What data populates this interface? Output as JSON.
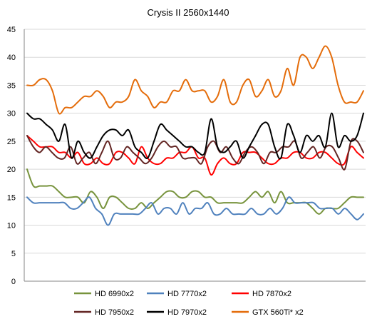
{
  "chart_data": {
    "type": "line",
    "title": "Crysis II 2560x1440",
    "xlabel": "",
    "ylabel": "",
    "ylim": [
      0,
      45
    ],
    "yticks": [
      0,
      5,
      10,
      15,
      20,
      25,
      30,
      35,
      40,
      45
    ],
    "grid": "horizontal",
    "legend_position": "bottom",
    "series": [
      {
        "name": "HD 6990x2",
        "color": "#77933c",
        "values": [
          20,
          17,
          17,
          17,
          17,
          16,
          15,
          15,
          15,
          14,
          16,
          15,
          13,
          15,
          15,
          14,
          13,
          13,
          14,
          13,
          14,
          15,
          16,
          16,
          15,
          15,
          16,
          16,
          15,
          15,
          14,
          14,
          14,
          14,
          14,
          15,
          16,
          15,
          16,
          14,
          16,
          14,
          14,
          14,
          14,
          13,
          12,
          13,
          13,
          13,
          14,
          15,
          15,
          15
        ]
      },
      {
        "name": "HD 7770x2",
        "color": "#4f81bd",
        "values": [
          15,
          14,
          14,
          14,
          14,
          14,
          14,
          13,
          13,
          14,
          15,
          13,
          12,
          10,
          12,
          12,
          12,
          12,
          12,
          13,
          14,
          12,
          13,
          13,
          12,
          14,
          12,
          13,
          13,
          14,
          12,
          12,
          13,
          12,
          12,
          12,
          13,
          12,
          12,
          13,
          12,
          13,
          15,
          14,
          14,
          14,
          14,
          13,
          13,
          13,
          12,
          13,
          12,
          11,
          12
        ]
      },
      {
        "name": "HD 7870x2",
        "color": "#ff0000",
        "values": [
          26,
          25,
          24,
          24,
          24,
          23,
          23,
          22,
          23,
          21,
          21,
          22,
          21,
          21,
          23,
          23,
          22,
          21,
          24,
          22,
          21,
          21,
          22,
          22,
          23,
          23,
          24,
          22,
          22,
          19,
          21,
          22,
          21,
          21,
          23,
          23,
          23,
          22,
          21,
          21,
          22,
          22,
          23,
          23,
          22,
          22,
          23,
          23,
          22,
          21,
          21,
          24,
          23,
          22
        ]
      },
      {
        "name": "HD 7950x2",
        "color": "#632523",
        "values": [
          26,
          24,
          23,
          24,
          23,
          22,
          22,
          24,
          21,
          22,
          23,
          21,
          23,
          25,
          22,
          22,
          24,
          23,
          22,
          21,
          22,
          24,
          25,
          24,
          24,
          22,
          22,
          22,
          21,
          24,
          25,
          23,
          24,
          22,
          21,
          23,
          24,
          23,
          21,
          23,
          23,
          24,
          24,
          25,
          22,
          23,
          24,
          22,
          24,
          24,
          22,
          20,
          25,
          25,
          23
        ]
      },
      {
        "name": "HD 7970x2",
        "color": "#000000",
        "values": [
          30,
          29,
          29,
          28,
          27,
          25,
          28,
          22,
          25,
          23,
          22,
          24,
          26,
          27,
          27,
          26,
          27,
          24,
          23,
          22,
          25,
          28,
          27,
          26,
          25,
          24,
          24,
          23,
          23,
          29,
          24,
          23,
          24,
          25,
          22,
          24,
          26,
          28,
          28,
          24,
          22,
          28,
          26,
          23,
          26,
          25,
          26,
          24,
          30,
          24,
          26,
          25,
          26,
          30
        ]
      },
      {
        "name": "GTX 560Ti* x2",
        "color": "#e46c0a",
        "values": [
          35,
          35,
          36,
          36,
          34,
          30,
          31,
          31,
          32,
          33,
          33,
          34,
          33,
          31,
          32,
          32,
          33,
          36,
          34,
          33,
          31,
          32,
          32,
          34,
          34,
          36,
          34,
          34,
          34,
          32,
          33,
          36,
          32,
          32,
          35,
          36,
          33,
          34,
          36,
          33,
          34,
          38,
          35,
          40,
          40,
          38,
          40,
          42,
          40,
          35,
          32,
          32,
          32,
          34
        ]
      }
    ]
  }
}
